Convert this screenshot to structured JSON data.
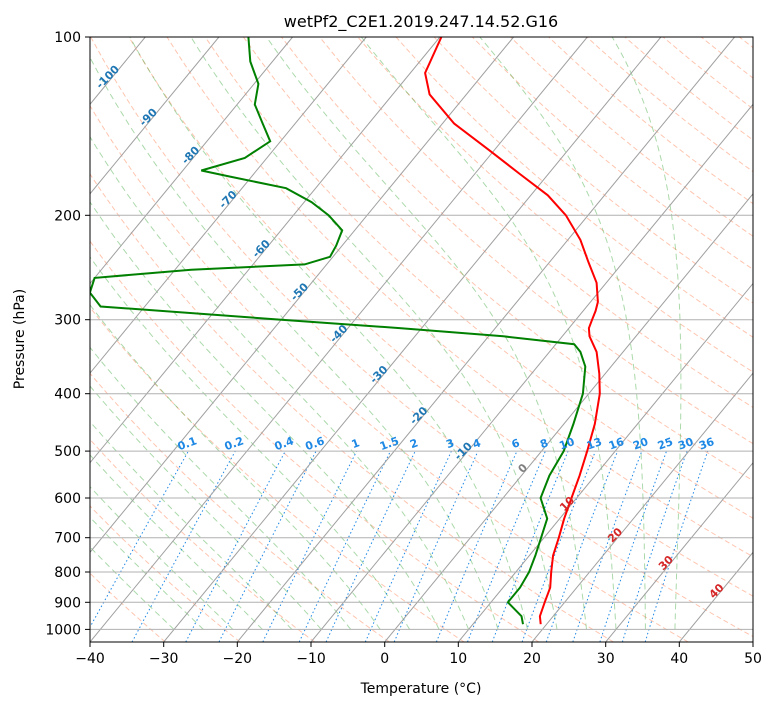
{
  "chart_data": {
    "type": "line",
    "title": "wetPf2_C2E1.2019.247.14.52.G16",
    "xlabel": "Temperature (°C)",
    "ylabel": "Pressure (hPa)",
    "xlim": [
      -40,
      50
    ],
    "ylim": [
      1050,
      100
    ],
    "y_scale": "log",
    "grid": true,
    "x_ticks": [
      "−40",
      "−30",
      "−20",
      "−10",
      "0",
      "10",
      "20",
      "30",
      "40",
      "50"
    ],
    "x_tick_values": [
      -40,
      -30,
      -20,
      -10,
      0,
      10,
      20,
      30,
      40,
      50
    ],
    "y_ticks": [
      "100",
      "200",
      "300",
      "400",
      "500",
      "600",
      "700",
      "800",
      "900",
      "1000"
    ],
    "y_tick_values": [
      100,
      200,
      300,
      400,
      500,
      600,
      700,
      800,
      900,
      1000
    ],
    "skew": 35,
    "series": [
      {
        "role": "temperature",
        "color": "#ff0000",
        "points": [
          {
            "p": 980,
            "t": 19.2
          },
          {
            "p": 950,
            "t": 18.2
          },
          {
            "p": 900,
            "t": 17.3
          },
          {
            "p": 850,
            "t": 16.4
          },
          {
            "p": 800,
            "t": 14.8
          },
          {
            "p": 750,
            "t": 13.2
          },
          {
            "p": 700,
            "t": 12.0
          },
          {
            "p": 650,
            "t": 10.6
          },
          {
            "p": 600,
            "t": 9.3
          },
          {
            "p": 550,
            "t": 7.9
          },
          {
            "p": 500,
            "t": 6.2
          },
          {
            "p": 450,
            "t": 4.2
          },
          {
            "p": 400,
            "t": 1.5
          },
          {
            "p": 370,
            "t": -0.8
          },
          {
            "p": 340,
            "t": -3.6
          },
          {
            "p": 320,
            "t": -6.3
          },
          {
            "p": 310,
            "t": -7.3
          },
          {
            "p": 300,
            "t": -7.8
          },
          {
            "p": 290,
            "t": -8.3
          },
          {
            "p": 280,
            "t": -9.0
          },
          {
            "p": 260,
            "t": -11.3
          },
          {
            "p": 240,
            "t": -14.7
          },
          {
            "p": 220,
            "t": -18.3
          },
          {
            "p": 200,
            "t": -23.0
          },
          {
            "p": 185,
            "t": -27.7
          },
          {
            "p": 170,
            "t": -34.0
          },
          {
            "p": 155,
            "t": -40.8
          },
          {
            "p": 140,
            "t": -48.4
          },
          {
            "p": 125,
            "t": -55.0
          },
          {
            "p": 115,
            "t": -58.0
          },
          {
            "p": 100,
            "t": -59.8
          }
        ]
      },
      {
        "role": "dewpoint",
        "color": "#008000",
        "points": [
          {
            "p": 980,
            "t": 16.8
          },
          {
            "p": 950,
            "t": 15.7
          },
          {
            "p": 900,
            "t": 12.3
          },
          {
            "p": 850,
            "t": 12.3
          },
          {
            "p": 800,
            "t": 11.8
          },
          {
            "p": 750,
            "t": 10.8
          },
          {
            "p": 700,
            "t": 9.6
          },
          {
            "p": 650,
            "t": 8.3
          },
          {
            "p": 600,
            "t": 5.1
          },
          {
            "p": 550,
            "t": 3.8
          },
          {
            "p": 500,
            "t": 3.0
          },
          {
            "p": 450,
            "t": 1.3
          },
          {
            "p": 400,
            "t": -0.8
          },
          {
            "p": 360,
            "t": -3.5
          },
          {
            "p": 340,
            "t": -5.8
          },
          {
            "p": 330,
            "t": -7.5
          },
          {
            "p": 320,
            "t": -18.0
          },
          {
            "p": 310,
            "t": -33.0
          },
          {
            "p": 300,
            "t": -50.0
          },
          {
            "p": 285,
            "t": -76.0
          },
          {
            "p": 270,
            "t": -79.0
          },
          {
            "p": 255,
            "t": -80.0
          },
          {
            "p": 247,
            "t": -67.8
          },
          {
            "p": 242,
            "t": -53.0
          },
          {
            "p": 235,
            "t": -50.4
          },
          {
            "p": 225,
            "t": -50.8
          },
          {
            "p": 212,
            "t": -51.7
          },
          {
            "p": 200,
            "t": -55.2
          },
          {
            "p": 190,
            "t": -59.0
          },
          {
            "p": 180,
            "t": -64.0
          },
          {
            "p": 172,
            "t": -73.0
          },
          {
            "p": 168,
            "t": -77.5
          },
          {
            "p": 160,
            "t": -73.0
          },
          {
            "p": 150,
            "t": -71.4
          },
          {
            "p": 140,
            "t": -74.4
          },
          {
            "p": 130,
            "t": -77.6
          },
          {
            "p": 120,
            "t": -79.4
          },
          {
            "p": 110,
            "t": -83.0
          },
          {
            "p": 100,
            "t": -86.0
          }
        ]
      }
    ],
    "isotherm_labels": [
      {
        "label": "-100",
        "t": -100
      },
      {
        "label": "-90",
        "t": -90
      },
      {
        "label": "-80",
        "t": -80
      },
      {
        "label": "-70",
        "t": -70
      },
      {
        "label": "-60",
        "t": -60
      },
      {
        "label": "-50",
        "t": -50
      },
      {
        "label": "-40",
        "t": -40
      },
      {
        "label": "-30",
        "t": -30
      },
      {
        "label": "-20",
        "t": -20
      },
      {
        "label": "-10",
        "t": -10
      }
    ],
    "mixing_ratio_labels": [
      "0.1",
      "0.2",
      "0.4",
      "0.6",
      "1",
      "1.5",
      "2",
      "3",
      "4",
      "6",
      "8",
      "10",
      "13",
      "16",
      "20",
      "25",
      "30",
      "36"
    ],
    "mixing_ratio_values": [
      0.1,
      0.2,
      0.4,
      0.6,
      1,
      1.5,
      2,
      3,
      4,
      6,
      8,
      10,
      13,
      16,
      20,
      25,
      30,
      36
    ],
    "warm_isotherm_labels": [
      {
        "label": "0",
        "t": 0,
        "color": "#808080"
      },
      {
        "label": "10",
        "t": 10,
        "color": "#d62728"
      },
      {
        "label": "20",
        "t": 20,
        "color": "#d62728"
      },
      {
        "label": "30",
        "t": 30,
        "color": "#d62728"
      },
      {
        "label": "40",
        "t": 40,
        "color": "#d62728"
      }
    ],
    "colors": {
      "isotherm_label": "#1f77b4",
      "mixing_ratio": "#1e88e5",
      "dry_adiabat": "#ff7f50",
      "moist_adiabat": "#2ca02c",
      "grid": "#b0b0b0",
      "skewed_isotherm": "#a0a0a0"
    }
  }
}
